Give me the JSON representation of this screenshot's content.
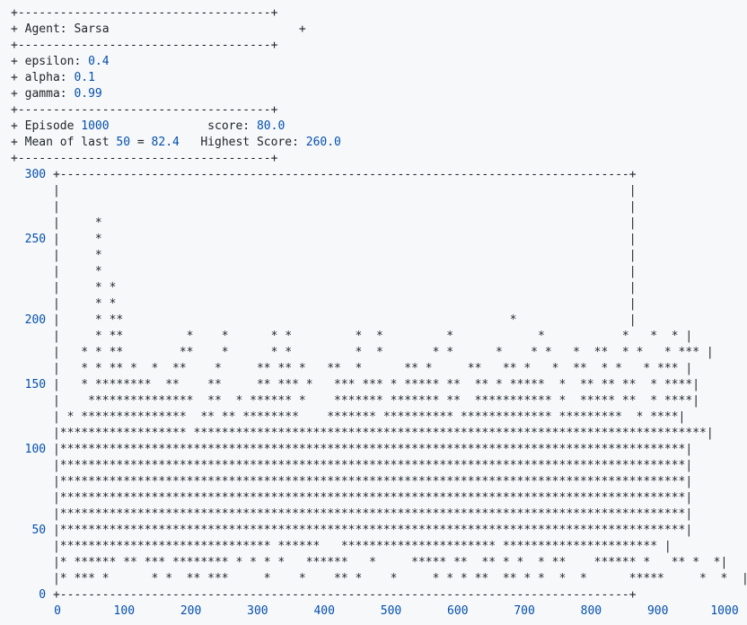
{
  "info": {
    "border": "+------------------------------------+",
    "agent_line_prefix": "+ Agent: ",
    "agent_name": "Sarsa",
    "agent_line_suffix": "                           +",
    "epsilon_label": "+ epsilon: ",
    "epsilon": "0.4",
    "alpha_label": "+ alpha: ",
    "alpha": "0.1",
    "gamma_label": "+ gamma: ",
    "gamma": "0.99",
    "episode_label": "+ Episode ",
    "episode": "1000",
    "score_label": "              score: ",
    "score": "80.0",
    "mean_label": "+ Mean of last ",
    "mean_window": "50",
    "mean_eq": " = ",
    "mean_value": "82.4",
    "highest_label": "   Highest Score: ",
    "highest": "260.0"
  },
  "chart_data": {
    "type": "histogram-ascii",
    "y_ticks": [
      "300",
      "250",
      "200",
      "150",
      "100",
      "50",
      "0"
    ],
    "x_ticks": [
      "0",
      "100",
      "200",
      "300",
      "400",
      "500",
      "600",
      "700",
      "800",
      "900",
      "1000"
    ],
    "xlim": [
      0,
      1000
    ],
    "ylim": [
      0,
      300
    ]
  },
  "plot_rows": [
    {
      "label": "300",
      "body": " +---------------------------------------------------------------------------------+"
    },
    {
      "label": "",
      "body": " |                                                                                 |"
    },
    {
      "label": "",
      "body": " |                                                                                 |"
    },
    {
      "label": "",
      "body": " |     *                                                                           |"
    },
    {
      "label": "250",
      "body": " |     *                                                                           |"
    },
    {
      "label": "",
      "body": " |     *                                                                           |"
    },
    {
      "label": "",
      "body": " |     *                                                                           |"
    },
    {
      "label": "",
      "body": " |     * *                                                                         |"
    },
    {
      "label": "",
      "body": " |     * *                                                                         |"
    },
    {
      "label": "200",
      "body": " |     * **                                                       *                |"
    },
    {
      "label": "",
      "body": " |     * **         *    *      * *         *  *         *            *           *   *  * |"
    },
    {
      "label": "",
      "body": " |   * * **        **    *      * *         *  *       * *      *    * *   *  **  * *   * *** |"
    },
    {
      "label": "",
      "body": " |   * * ** *  *  **    *     ** ** *   **  *      ** *     **   ** *   *  **  * *   * *** |"
    },
    {
      "label": "150",
      "body": " |   * ********  **    **     ** *** *   *** *** * ***** **  ** * *****  *  ** ** **  * ****|"
    },
    {
      "label": "",
      "body": " |    ***************  **  * ****** *    ******* ******* **  *********** *  ***** **  * ****|"
    },
    {
      "label": "",
      "body": " | * ***************  ** ** ********    ******* ********** ************* *********  * ****|"
    },
    {
      "label": "",
      "body": " |****************** *************************************************************************|"
    },
    {
      "label": "100",
      "body": " |*****************************************************************************************|"
    },
    {
      "label": "",
      "body": " |*****************************************************************************************|"
    },
    {
      "label": "",
      "body": " |*****************************************************************************************|"
    },
    {
      "label": "",
      "body": " |*****************************************************************************************|"
    },
    {
      "label": "",
      "body": " |*****************************************************************************************|"
    },
    {
      "label": "50",
      "body": " |*****************************************************************************************|"
    },
    {
      "label": "",
      "body": " |****************************** ******   ********************** ********************** |"
    },
    {
      "label": "",
      "body": " |* ****** ** *** ******** * * * *   ******   *     ***** **  ** * *  * **    ****** *   ** *  *|"
    },
    {
      "label": "",
      "body": " |* *** *      * *  ** ***     *    *    ** *    *     * * * **  ** * *  *  *      *****     *  *  |"
    },
    {
      "label": "0",
      "body": " +---------------------------------------------------------------------------------+"
    }
  ]
}
